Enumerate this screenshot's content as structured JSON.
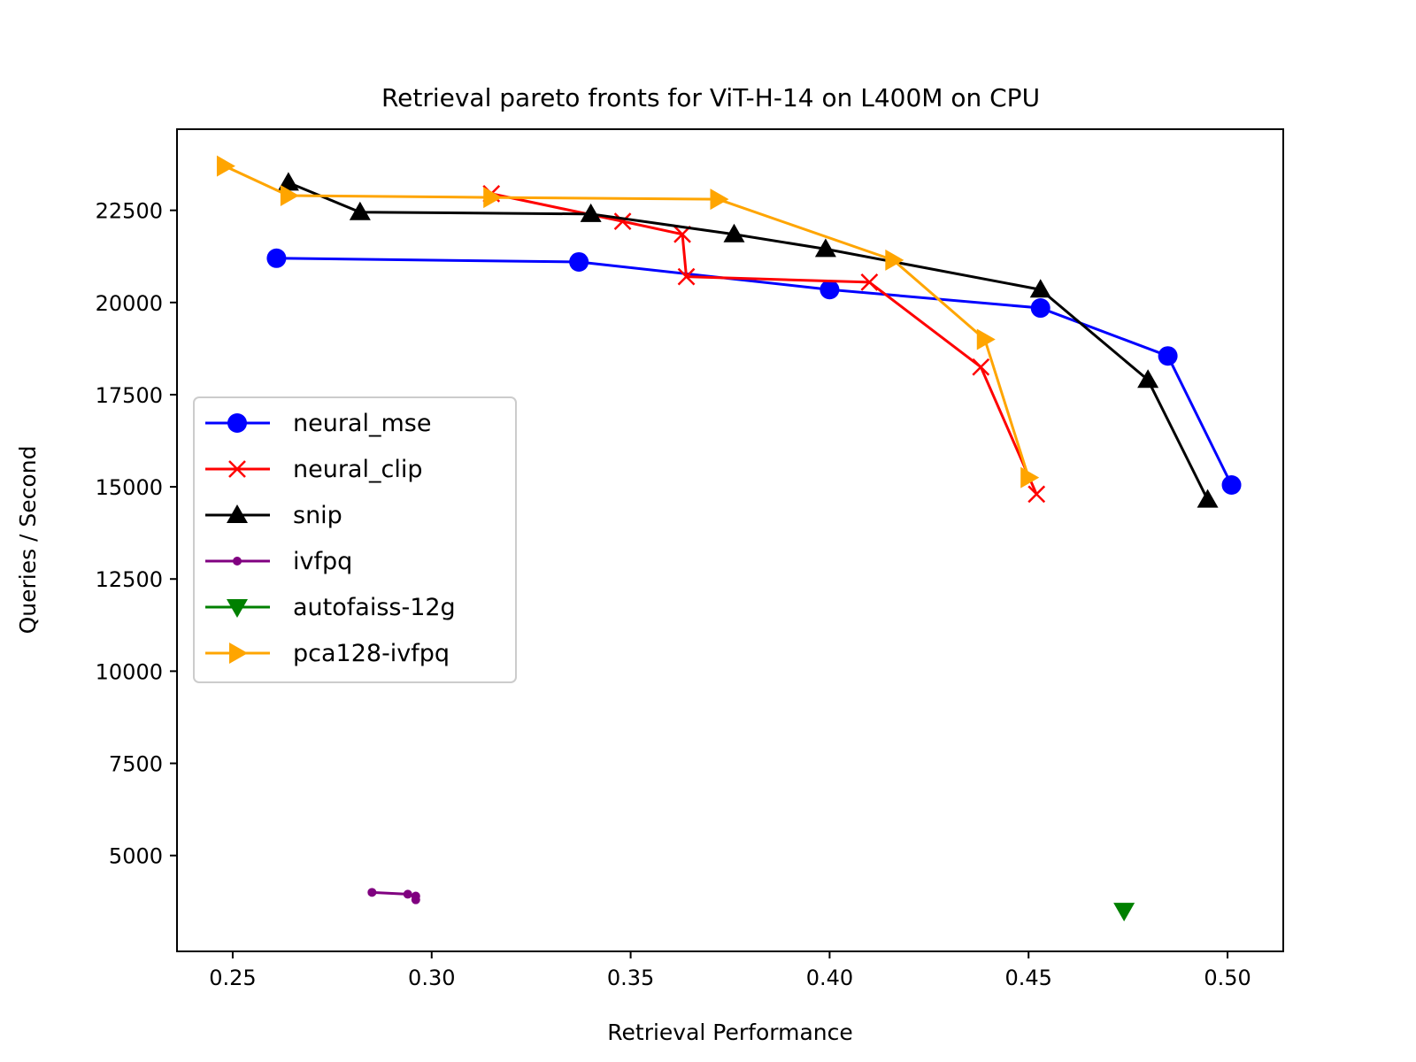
{
  "chart_data": {
    "type": "line",
    "title": "Retrieval pareto fronts for ViT-H-14 on L400M on CPU",
    "xlabel": "Retrieval Performance",
    "ylabel": "Queries / Second",
    "xlim": [
      0.236,
      0.514
    ],
    "ylim": [
      2400,
      24700
    ],
    "xticks": [
      0.25,
      0.3,
      0.35,
      0.4,
      0.45,
      0.5
    ],
    "xtick_labels": [
      "0.25",
      "0.30",
      "0.35",
      "0.40",
      "0.45",
      "0.50"
    ],
    "yticks": [
      5000,
      7500,
      10000,
      12500,
      15000,
      17500,
      20000,
      22500
    ],
    "ytick_labels": [
      "5000",
      "7500",
      "10000",
      "12500",
      "15000",
      "17500",
      "20000",
      "22500"
    ],
    "grid": false,
    "legend_position": "center-left",
    "series": [
      {
        "name": "neural_mse",
        "color": "#0000ff",
        "marker": "circle",
        "x": [
          0.261,
          0.337,
          0.4,
          0.453,
          0.485,
          0.501
        ],
        "y": [
          21200,
          21100,
          20350,
          19850,
          18550,
          15050
        ]
      },
      {
        "name": "neural_clip",
        "color": "#ff0000",
        "marker": "x",
        "x": [
          0.315,
          0.348,
          0.363,
          0.364,
          0.41,
          0.438,
          0.452
        ],
        "y": [
          22950,
          22200,
          21850,
          20700,
          20550,
          18250,
          14800
        ]
      },
      {
        "name": "snip",
        "color": "#000000",
        "marker": "triangle-up",
        "x": [
          0.264,
          0.282,
          0.34,
          0.376,
          0.399,
          0.453,
          0.48,
          0.495
        ],
        "y": [
          23250,
          22450,
          22400,
          21850,
          21450,
          20350,
          17900,
          14650
        ]
      },
      {
        "name": "ivfpq",
        "color": "#800080",
        "marker": "small-dot",
        "x": [
          0.285,
          0.294,
          0.296,
          0.296
        ],
        "y": [
          4000,
          3950,
          3900,
          3800
        ]
      },
      {
        "name": "autofaiss-12g",
        "color": "#008000",
        "marker": "triangle-down",
        "x": [
          0.474
        ],
        "y": [
          3500
        ]
      },
      {
        "name": "pca128-ivfpq",
        "color": "#ffa500",
        "marker": "triangle-right",
        "x": [
          0.248,
          0.264,
          0.315,
          0.372,
          0.416,
          0.439,
          0.45
        ],
        "y": [
          23700,
          22900,
          22850,
          22800,
          21150,
          19000,
          15250
        ]
      }
    ]
  }
}
